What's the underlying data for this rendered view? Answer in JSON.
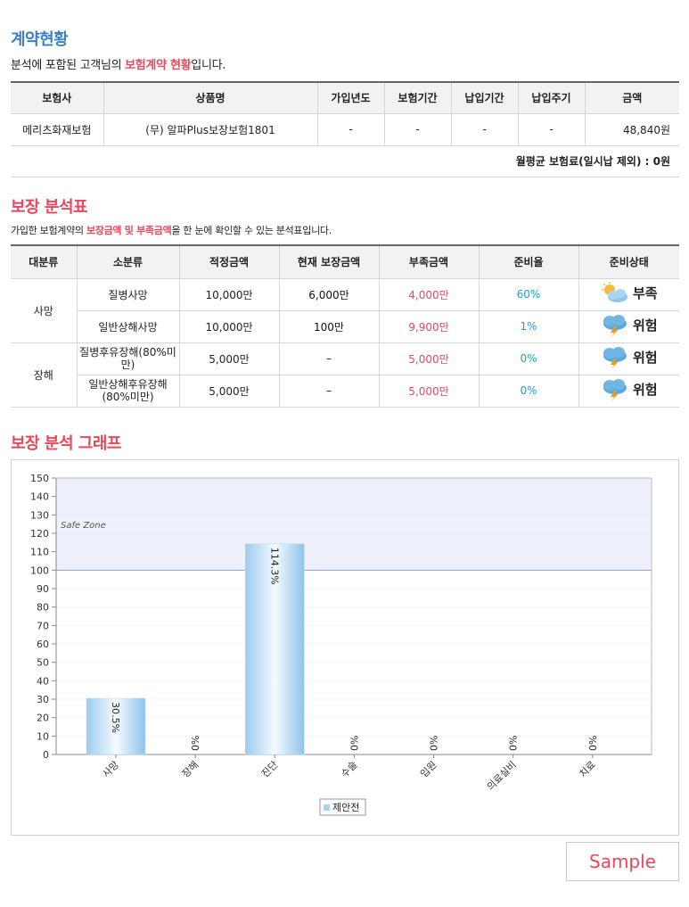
{
  "contract": {
    "title": "계약현황",
    "intro_before": "분석에 포함된 고객님의 ",
    "intro_highlight": "보험계약 현황",
    "intro_after": "입니다.",
    "headers": [
      "보험사",
      "상품명",
      "가입년도",
      "보험기간",
      "납입기간",
      "납입주기",
      "금액"
    ],
    "rows": [
      [
        "메리츠화재보험",
        "(무) 알파Plus보장보험1801",
        "-",
        "-",
        "-",
        "-",
        "48,840원"
      ]
    ],
    "monthly_premium": "월평균 보험료(일시납 제외) : 0원"
  },
  "analysis": {
    "title": "보장 분석표",
    "intro_before": "가입한 보험계약의 ",
    "intro_highlight": "보장금액 및 부족금액",
    "intro_after": "을 한 눈에 확인할 수 있는 분석표입니다.",
    "headers": [
      "대분류",
      "소분류",
      "적정금액",
      "현재 보장금액",
      "부족금액",
      "준비율",
      "준비상태"
    ],
    "groups": [
      {
        "category": "사망",
        "rows": [
          {
            "sub": "질병사망",
            "proper": "10,000만",
            "current": "6,000만",
            "short": "4,000만",
            "ratio": "60%",
            "status": "부족",
            "status_icon": "cloudy-sun-icon"
          },
          {
            "sub": "일반상해사망",
            "proper": "10,000만",
            "current": "100만",
            "short": "9,900만",
            "ratio": "1%",
            "status": "위험",
            "status_icon": "thunderstorm-icon"
          }
        ]
      },
      {
        "category": "장해",
        "rows": [
          {
            "sub": "질병후유장해(80%미만)",
            "proper": "5,000만",
            "current": "–",
            "short": "5,000만",
            "ratio": "0%",
            "status": "위험",
            "status_icon": "thunderstorm-icon"
          },
          {
            "sub": "일반상해후유장해(80%미만)",
            "proper": "5,000만",
            "current": "–",
            "short": "5,000만",
            "ratio": "0%",
            "status": "위험",
            "status_icon": "thunderstorm-icon"
          }
        ]
      }
    ]
  },
  "graph": {
    "title": "보장 분석 그래프"
  },
  "chart_data": {
    "type": "bar",
    "categories": [
      "사망",
      "장해",
      "진단",
      "수술",
      "입원",
      "의료실비",
      "치료"
    ],
    "series": [
      {
        "name": "제안전",
        "values": [
          30.5,
          0,
          114.3,
          0,
          0,
          0,
          0
        ]
      }
    ],
    "labels": [
      "30.5%",
      "0%",
      "114.3%",
      "0%",
      "0%",
      "0%",
      "0%"
    ],
    "ylim": [
      0,
      150
    ],
    "yticks": [
      0,
      10,
      20,
      30,
      40,
      50,
      60,
      70,
      80,
      90,
      100,
      110,
      120,
      130,
      140,
      150
    ],
    "safe_zone": {
      "label": "Safe Zone",
      "from": 100,
      "to": 150
    },
    "grid": true,
    "legend": "bottom",
    "colors": {
      "bar": "#a9d3f2",
      "safe_zone": "#eef0fb"
    }
  },
  "sample_button": "Sample"
}
